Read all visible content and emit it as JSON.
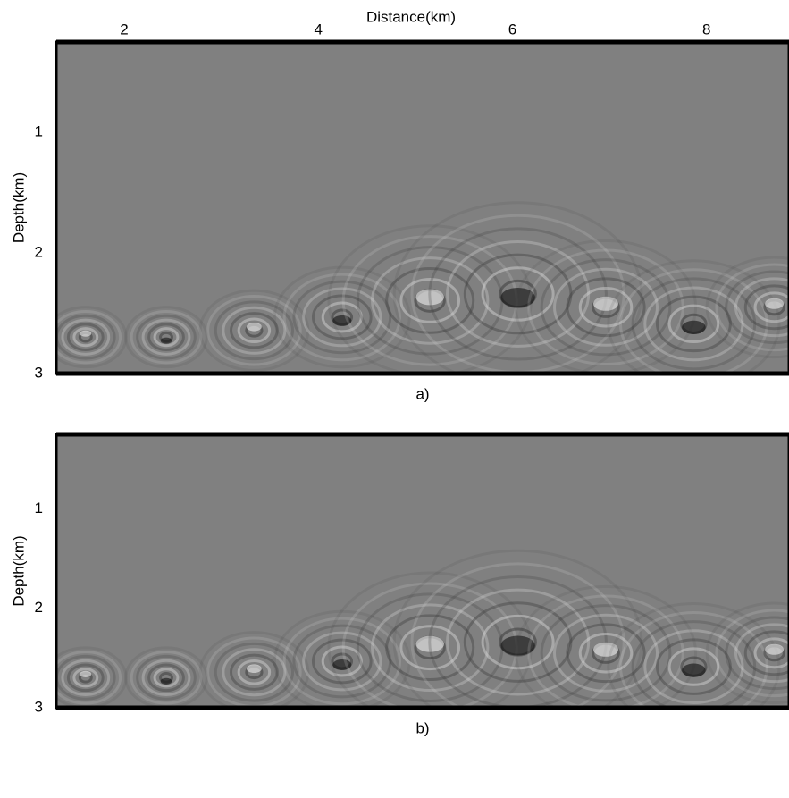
{
  "chart_data": [
    {
      "type": "image",
      "title": "Distance(km)",
      "ylabel": "Depth(km)",
      "caption": "a)",
      "xlim": [
        1.3,
        8.85
      ],
      "xticks": [
        2,
        4,
        6,
        8
      ],
      "ylim": [
        0.25,
        3
      ],
      "yticks": [
        1,
        2,
        3
      ]
    },
    {
      "type": "image",
      "ylabel": "Depth(km)",
      "caption": "b)",
      "xlim": [
        1.3,
        8.85
      ],
      "ylim": [
        0.25,
        3
      ],
      "yticks": [
        1,
        2,
        3
      ]
    }
  ]
}
